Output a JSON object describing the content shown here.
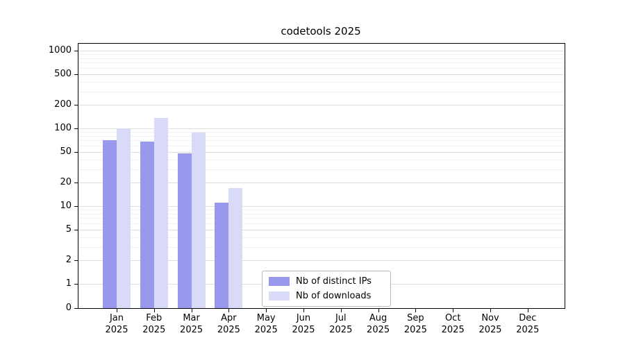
{
  "chart_data": {
    "type": "bar",
    "title": "codetools 2025",
    "categories": [
      "Jan",
      "Feb",
      "Mar",
      "Apr",
      "May",
      "Jun",
      "Jul",
      "Aug",
      "Sep",
      "Oct",
      "Nov",
      "Dec"
    ],
    "year_label": "2025",
    "series": [
      {
        "name": "Nb of distinct IPs",
        "color": "#9898ec",
        "values": [
          70,
          68,
          48,
          11,
          0,
          0,
          0,
          0,
          0,
          0,
          0,
          0
        ]
      },
      {
        "name": "Nb of downloads",
        "color": "#d9d9f8",
        "values": [
          100,
          135,
          88,
          17,
          0,
          0,
          0,
          0,
          0,
          0,
          0,
          0
        ]
      }
    ],
    "y_ticks": [
      0,
      1,
      2,
      5,
      10,
      20,
      50,
      100,
      200,
      500,
      1000
    ],
    "yscale": "log-with-zero",
    "grid": "horizontal",
    "legend_position": "bottom-center"
  }
}
